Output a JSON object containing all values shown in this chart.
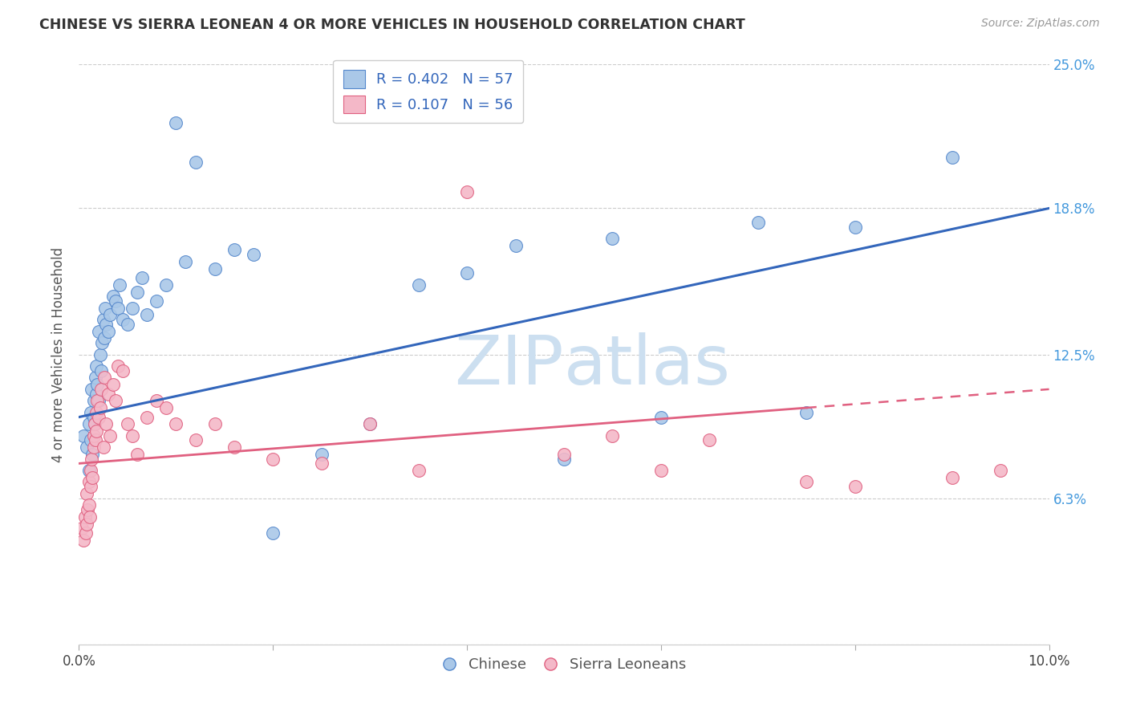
{
  "title": "CHINESE VS SIERRA LEONEAN 4 OR MORE VEHICLES IN HOUSEHOLD CORRELATION CHART",
  "source": "Source: ZipAtlas.com",
  "ylabel": "4 or more Vehicles in Household",
  "xlim": [
    0.0,
    10.0
  ],
  "ylim": [
    0.0,
    25.0
  ],
  "ytick_positions": [
    0.0,
    6.3,
    12.5,
    18.8,
    25.0
  ],
  "ytick_labels": [
    "",
    "6.3%",
    "12.5%",
    "18.8%",
    "25.0%"
  ],
  "legend1_text": "R = 0.402   N = 57",
  "legend2_text": "R = 0.107   N = 56",
  "chinese_label": "Chinese",
  "sierra_label": "Sierra Leoneans",
  "blue_color": "#aac8e8",
  "pink_color": "#f4b8c8",
  "blue_edge_color": "#5588cc",
  "pink_edge_color": "#e06080",
  "blue_line_color": "#3366bb",
  "pink_line_color": "#e06080",
  "watermark_color": "#ccdff0",
  "chinese_x": [
    0.05,
    0.08,
    0.1,
    0.1,
    0.12,
    0.12,
    0.13,
    0.14,
    0.15,
    0.15,
    0.16,
    0.17,
    0.18,
    0.18,
    0.19,
    0.2,
    0.2,
    0.22,
    0.23,
    0.24,
    0.25,
    0.26,
    0.27,
    0.28,
    0.3,
    0.32,
    0.35,
    0.38,
    0.4,
    0.42,
    0.45,
    0.5,
    0.55,
    0.6,
    0.65,
    0.7,
    0.8,
    0.9,
    1.0,
    1.1,
    1.2,
    1.4,
    1.6,
    1.8,
    2.0,
    2.5,
    3.0,
    3.5,
    4.0,
    4.5,
    5.0,
    5.5,
    6.0,
    7.0,
    7.5,
    8.0,
    9.0
  ],
  "chinese_y": [
    9.0,
    8.5,
    7.5,
    9.5,
    8.8,
    10.0,
    11.0,
    8.2,
    10.5,
    9.8,
    9.5,
    11.5,
    10.8,
    12.0,
    11.2,
    10.5,
    13.5,
    12.5,
    11.8,
    13.0,
    14.0,
    13.2,
    14.5,
    13.8,
    13.5,
    14.2,
    15.0,
    14.8,
    14.5,
    15.5,
    14.0,
    13.8,
    14.5,
    15.2,
    15.8,
    14.2,
    14.8,
    15.5,
    22.5,
    16.5,
    20.8,
    16.2,
    17.0,
    16.8,
    4.8,
    8.2,
    9.5,
    15.5,
    16.0,
    17.2,
    8.0,
    17.5,
    9.8,
    18.2,
    10.0,
    18.0,
    21.0
  ],
  "sierra_x": [
    0.03,
    0.05,
    0.06,
    0.07,
    0.08,
    0.08,
    0.09,
    0.1,
    0.1,
    0.11,
    0.12,
    0.12,
    0.13,
    0.14,
    0.15,
    0.15,
    0.16,
    0.17,
    0.18,
    0.18,
    0.19,
    0.2,
    0.22,
    0.23,
    0.25,
    0.26,
    0.28,
    0.3,
    0.32,
    0.35,
    0.38,
    0.4,
    0.45,
    0.5,
    0.55,
    0.6,
    0.7,
    0.8,
    0.9,
    1.0,
    1.2,
    1.4,
    1.6,
    2.0,
    2.5,
    3.0,
    3.5,
    4.0,
    5.0,
    5.5,
    6.0,
    6.5,
    7.5,
    8.0,
    9.0,
    9.5
  ],
  "sierra_y": [
    5.0,
    4.5,
    5.5,
    4.8,
    5.2,
    6.5,
    5.8,
    6.0,
    7.0,
    5.5,
    6.8,
    7.5,
    8.0,
    7.2,
    8.5,
    9.0,
    9.5,
    8.8,
    9.2,
    10.0,
    10.5,
    9.8,
    10.2,
    11.0,
    8.5,
    11.5,
    9.5,
    10.8,
    9.0,
    11.2,
    10.5,
    12.0,
    11.8,
    9.5,
    9.0,
    8.2,
    9.8,
    10.5,
    10.2,
    9.5,
    8.8,
    9.5,
    8.5,
    8.0,
    7.8,
    9.5,
    7.5,
    19.5,
    8.2,
    9.0,
    7.5,
    8.8,
    7.0,
    6.8,
    7.2,
    7.5
  ],
  "blue_line_x0": 0.0,
  "blue_line_y0": 9.8,
  "blue_line_x1": 10.0,
  "blue_line_y1": 18.8,
  "pink_line_x0": 0.0,
  "pink_line_y0": 7.8,
  "pink_line_x1": 10.0,
  "pink_line_y1": 11.0,
  "pink_solid_end_x": 7.5
}
